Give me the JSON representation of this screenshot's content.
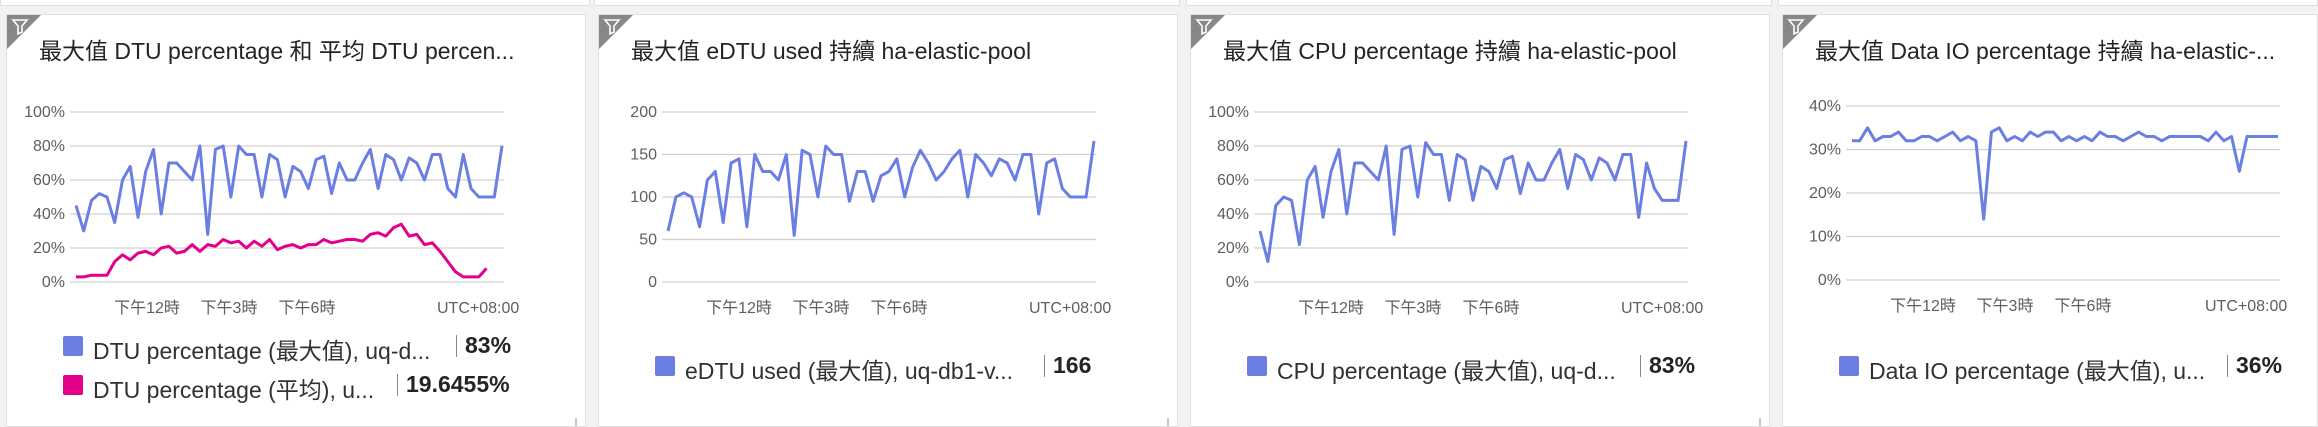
{
  "colors": {
    "max_series": "#6b7fe3",
    "avg_series": "#e3008c",
    "gridline": "#d2d0ce",
    "filter_corner": "#8a8886"
  },
  "icons": {
    "filter": "filter-icon"
  },
  "tiles": [
    {
      "title": "最大值 DTU percentage 和 平均 DTU percen...",
      "legend": [
        {
          "label": "DTU percentage (最大值), uq-d...",
          "value": "83%"
        },
        {
          "label": "DTU percentage (平均), u...",
          "value": "19.6455%"
        }
      ]
    },
    {
      "title": "最大值 eDTU used 持續 ha-elastic-pool",
      "legend": [
        {
          "label": "eDTU used (最大值), uq-db1-v...",
          "value": "166"
        }
      ]
    },
    {
      "title": "最大值 CPU percentage 持續 ha-elastic-pool",
      "legend": [
        {
          "label": "CPU percentage (最大值), uq-d...",
          "value": "83%"
        }
      ]
    },
    {
      "title": "最大值 Data IO percentage 持續 ha-elastic-...",
      "legend": [
        {
          "label": "Data IO percentage (最大值), u...",
          "value": "36%"
        }
      ]
    }
  ],
  "chart_data": [
    {
      "type": "line",
      "title": "最大值 DTU percentage 和 平均 DTU percen...",
      "y_ticks": [
        "100%",
        "80%",
        "60%",
        "40%",
        "20%",
        "0%"
      ],
      "ylim": [
        0,
        100
      ],
      "x_ticks": [
        "下午12時",
        "下午3時",
        "下午6時"
      ],
      "x_tick_positions": [
        4,
        10,
        16
      ],
      "timezone_label": "UTC+08:00",
      "grid": true,
      "series": [
        {
          "name": "DTU percentage (最大值), uq-d...",
          "color": "#6b7fe3",
          "values": [
            45,
            30,
            48,
            52,
            50,
            35,
            60,
            68,
            38,
            65,
            78,
            40,
            70,
            70,
            65,
            60,
            80,
            28,
            78,
            80,
            50,
            80,
            75,
            75,
            50,
            75,
            72,
            50,
            68,
            65,
            55,
            72,
            74,
            52,
            70,
            60,
            60,
            70,
            78,
            55,
            75,
            72,
            60,
            73,
            70,
            60,
            75,
            75,
            55,
            50,
            75,
            55,
            50,
            50,
            50,
            80
          ]
        },
        {
          "name": "DTU percentage (平均), u...",
          "color": "#e3008c",
          "values": [
            3,
            3,
            4,
            4,
            4,
            12,
            16,
            13,
            17,
            18,
            16,
            20,
            21,
            17,
            18,
            22,
            18,
            22,
            21,
            25,
            23,
            24,
            20,
            24,
            21,
            25,
            19,
            21,
            22,
            20,
            22,
            22,
            25,
            23,
            24,
            25,
            25,
            24,
            28,
            29,
            27,
            32,
            34,
            27,
            28,
            22,
            23,
            18,
            12,
            6,
            3,
            3,
            3,
            8
          ]
        }
      ]
    },
    {
      "type": "line",
      "title": "最大值 eDTU used 持續 ha-elastic-pool",
      "y_ticks": [
        "200",
        "150",
        "100",
        "50",
        "0"
      ],
      "ylim": [
        0,
        200
      ],
      "x_ticks": [
        "下午12時",
        "下午3時",
        "下午6時"
      ],
      "x_tick_positions": [
        4,
        10,
        16
      ],
      "timezone_label": "UTC+08:00",
      "grid": true,
      "series": [
        {
          "name": "eDTU used (最大值), uq-db1-v...",
          "color": "#6b7fe3",
          "values": [
            60,
            100,
            105,
            100,
            65,
            120,
            130,
            70,
            140,
            145,
            65,
            150,
            130,
            130,
            120,
            150,
            55,
            155,
            150,
            100,
            160,
            150,
            150,
            95,
            130,
            130,
            95,
            125,
            130,
            145,
            100,
            135,
            155,
            140,
            120,
            130,
            145,
            155,
            100,
            150,
            140,
            125,
            145,
            140,
            120,
            150,
            150,
            80,
            140,
            145,
            110,
            100,
            100,
            100,
            166
          ]
        }
      ]
    },
    {
      "type": "line",
      "title": "最大值 CPU percentage 持續 ha-elastic-pool",
      "y_ticks": [
        "100%",
        "80%",
        "60%",
        "40%",
        "20%",
        "0%"
      ],
      "ylim": [
        0,
        100
      ],
      "x_ticks": [
        "下午12時",
        "下午3時",
        "下午6時"
      ],
      "x_tick_positions": [
        4,
        10,
        16
      ],
      "timezone_label": "UTC+08:00",
      "grid": true,
      "series": [
        {
          "name": "CPU percentage (最大值), uq-d...",
          "color": "#6b7fe3",
          "values": [
            30,
            12,
            45,
            50,
            48,
            22,
            60,
            68,
            38,
            65,
            78,
            40,
            70,
            70,
            65,
            60,
            80,
            28,
            78,
            80,
            50,
            82,
            75,
            75,
            48,
            75,
            72,
            48,
            68,
            65,
            55,
            72,
            74,
            52,
            70,
            60,
            60,
            70,
            78,
            55,
            75,
            72,
            60,
            73,
            70,
            60,
            75,
            75,
            38,
            70,
            55,
            48,
            48,
            48,
            83
          ]
        }
      ]
    },
    {
      "type": "line",
      "title": "最大值 Data IO percentage 持續 ha-elastic-...",
      "y_ticks": [
        "40%",
        "30%",
        "20%",
        "10%",
        "0%"
      ],
      "ylim": [
        0,
        40
      ],
      "x_ticks": [
        "下午12時",
        "下午3時",
        "下午6時"
      ],
      "x_tick_positions": [
        4,
        10,
        16
      ],
      "timezone_label": "UTC+08:00",
      "grid": true,
      "series": [
        {
          "name": "Data IO percentage (最大值), u...",
          "color": "#6b7fe3",
          "values": [
            32,
            32,
            35,
            32,
            33,
            33,
            34,
            32,
            32,
            33,
            33,
            32,
            33,
            34,
            32,
            33,
            32,
            14,
            34,
            35,
            32,
            33,
            32,
            34,
            33,
            34,
            34,
            32,
            33,
            32,
            33,
            32,
            34,
            33,
            33,
            32,
            33,
            34,
            33,
            33,
            32,
            33,
            33,
            33,
            33,
            33,
            32,
            34,
            32,
            33,
            25,
            33,
            33,
            33,
            33,
            33
          ]
        }
      ]
    }
  ]
}
